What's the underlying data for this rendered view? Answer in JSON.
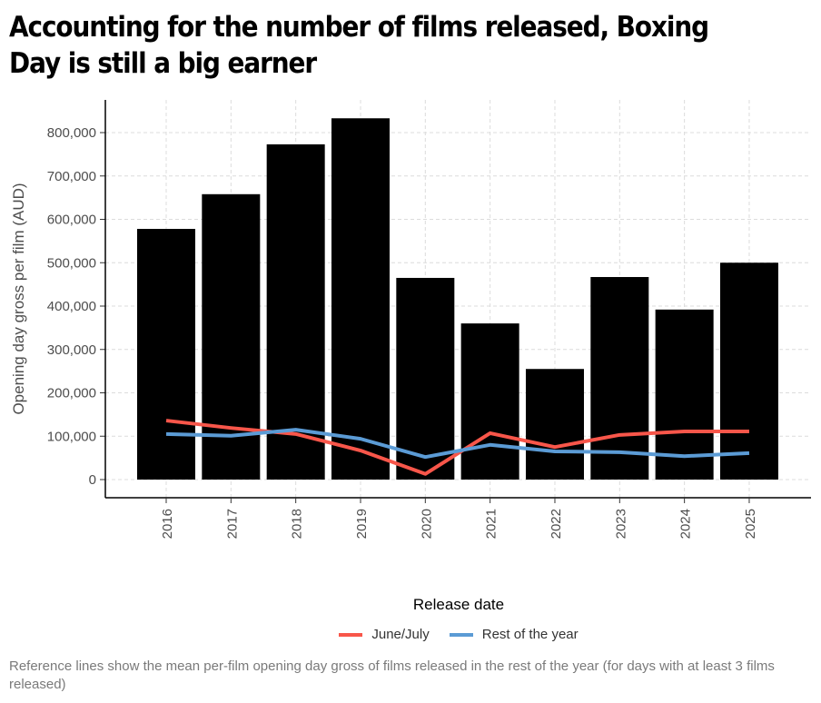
{
  "title": "Accounting for the number of films released, Boxing Day is still a big earner",
  "caption": "Reference lines show the mean per-film opening day gross of films released in the rest of the year (for days with at least 3 films released)",
  "chart_data": {
    "type": "bar",
    "title": "Accounting for the number of films released, Boxing Day is still a big earner",
    "xlabel": "Release date",
    "ylabel": "Opening day gross per film (AUD)",
    "categories": [
      "2016",
      "2017",
      "2018",
      "2019",
      "2020",
      "2021",
      "2022",
      "2023",
      "2024",
      "2025"
    ],
    "values": [
      578000,
      658000,
      773000,
      833000,
      465000,
      360000,
      255000,
      467000,
      392000,
      500000
    ],
    "bar_color": "#000000",
    "lines": [
      {
        "name": "June/July",
        "color": "#F8564A",
        "values": [
          136000,
          119000,
          105000,
          67000,
          13000,
          107000,
          75000,
          103000,
          111000,
          111000
        ]
      },
      {
        "name": "Rest of the year",
        "color": "#5B9BD5",
        "values": [
          105000,
          101000,
          115000,
          94000,
          52000,
          80000,
          65000,
          63000,
          54000,
          61000
        ]
      }
    ],
    "yticks": [
      "0",
      "100,000",
      "200,000",
      "300,000",
      "400,000",
      "500,000",
      "600,000",
      "700,000",
      "800,000"
    ],
    "ylim": [
      0,
      800000
    ],
    "grid": true,
    "legend_position": "bottom"
  }
}
